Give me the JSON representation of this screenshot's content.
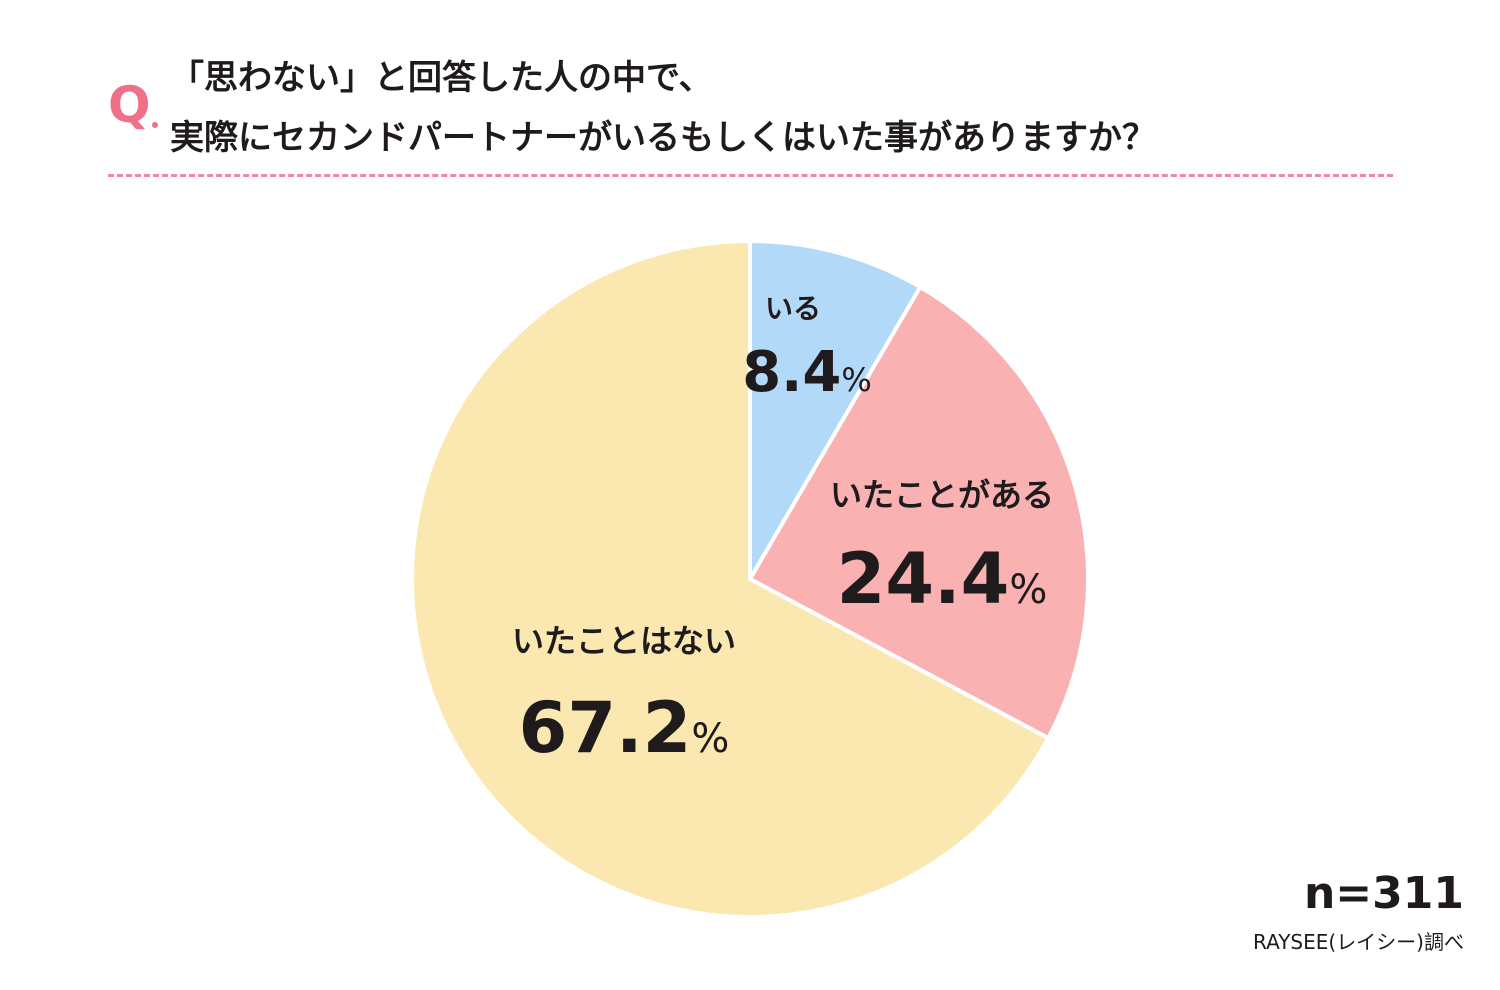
{
  "question": {
    "marker": "Q",
    "line1": "「思わない」と回答した人の中で、",
    "line2": "実際にセカンドパートナーがいるもしくはいた事がありますか？"
  },
  "chart_data": {
    "type": "pie",
    "title": "「思わない」と回答した人の中で、実際にセカンドパートナーがいるもしくはいた事がありますか？",
    "slices": [
      {
        "label": "いる",
        "value": 8.4,
        "display": "8.4",
        "color": "#b3d9f8"
      },
      {
        "label": "いたことがある",
        "value": 24.4,
        "display": "24.4",
        "color": "#f9b1b1"
      },
      {
        "label": "いたことはない",
        "value": 67.2,
        "display": "67.2",
        "color": "#fae8b0"
      }
    ],
    "unit": "%",
    "start": "12 o'clock",
    "direction": "clockwise"
  },
  "footer": {
    "sample_size": "n=311",
    "source": "RAYSEE(レイシー)調べ"
  }
}
